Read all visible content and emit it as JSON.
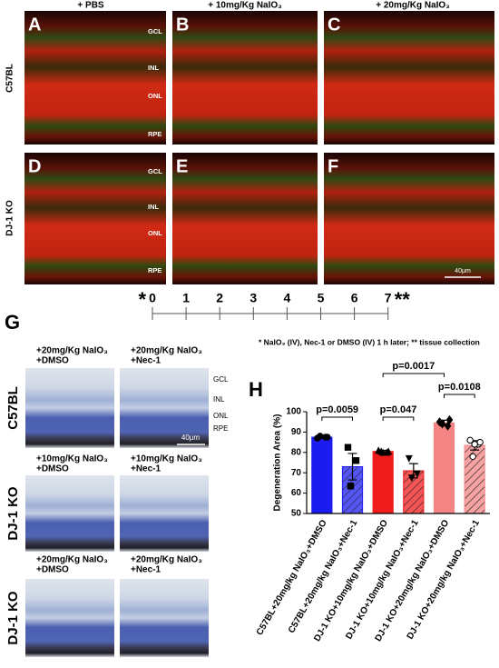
{
  "panel_labels": [
    "A",
    "B",
    "C",
    "D",
    "E",
    "F"
  ],
  "column_headers": [
    "+ PBS",
    "+ 10mg/Kg NaIO₃",
    "+ 20mg/Kg NaIO₃"
  ],
  "row_labels": [
    "C57BL",
    "DJ-1 KO"
  ],
  "layer_labels": [
    "GCL",
    "INL",
    "ONL",
    "RPE",
    "GCL",
    "INL",
    "ONL",
    "RPE"
  ],
  "scale_bar": "40μm",
  "timeline": {
    "start_marker": "*",
    "end_marker": "**",
    "days": [
      0,
      1,
      2,
      3,
      4,
      5,
      6,
      7
    ]
  },
  "footnote": "* NaIO₃ (IV), Nec-1 or DMSO (IV) 1 h later; ** tissue collection",
  "panel_g": {
    "label": "G",
    "row_labels": [
      "C57BL",
      "DJ-1 KO",
      "DJ-1 KO"
    ],
    "captions": [
      [
        [
          "+20mg/Kg NaIO₃",
          "+DMSO"
        ],
        [
          "+20mg/Kg NaIO₃",
          "+Nec-1"
        ]
      ],
      [
        [
          "+10mg/Kg NaIO₃",
          "+DMSO"
        ],
        [
          "+10mg/Kg NaIO₃",
          "+Nec-1"
        ]
      ],
      [
        [
          "+20mg/Kg NaIO₃",
          "+DMSO"
        ],
        [
          "+20mg/Kg NaIO₃",
          "+Nec-1"
        ]
      ]
    ],
    "layer_labels": [
      "GCL",
      "INL",
      "ONL",
      "RPE"
    ],
    "scale_bar": "40μm"
  },
  "panel_h": {
    "label": "H"
  },
  "chart_data": {
    "type": "bar",
    "ylabel": "Degeneration Area (%)",
    "categories": [
      "C57BL+20mg/kg NaIO₃+DMSO",
      "C57BL+20mg/kg NaIO₃+Nec-1",
      "DJ-1 KO+10mg/kg NaIO₃+DMSO",
      "DJ-1 KO+10mg/kg NaIO₃+Nec-1",
      "DJ-1 KO+20mg/kg NaIO₃+DMSO",
      "DJ-1 KO+20mg/kg NaIO₃+Nec-1"
    ],
    "values": [
      87.5,
      73,
      80.5,
      71,
      94.5,
      83.5
    ],
    "errors": [
      0.5,
      6.5,
      0.5,
      3.5,
      1.3,
      2.3
    ],
    "points": [
      [
        87,
        87.5,
        88,
        87.5
      ],
      [
        82.5,
        76,
        63.5
      ],
      [
        81,
        80,
        80.5,
        80.5,
        80
      ],
      [
        77,
        69.5,
        67.5
      ],
      [
        95,
        93,
        94,
        96
      ],
      [
        86,
        84,
        78,
        85,
        84
      ]
    ],
    "colors": [
      "#1c1cf0",
      "#1c1cf0",
      "#f01c1c",
      "#f01c1c",
      "#f48484",
      "#f48484"
    ],
    "hatched": [
      false,
      true,
      false,
      true,
      false,
      true
    ],
    "markers": [
      "circle",
      "square",
      "triangle",
      "triangle-down",
      "diamond",
      "circle-open"
    ],
    "ylim": [
      50,
      100
    ],
    "yticks": [
      50,
      60,
      70,
      80,
      90,
      100
    ],
    "comparisons": [
      {
        "from": 0,
        "to": 1,
        "label": "p=0.0059"
      },
      {
        "from": 2,
        "to": 3,
        "label": "p=0.047"
      },
      {
        "from": 2,
        "to": 4,
        "label": "p=0.0017"
      },
      {
        "from": 4,
        "to": 5,
        "label": "p=0.0108"
      }
    ]
  }
}
